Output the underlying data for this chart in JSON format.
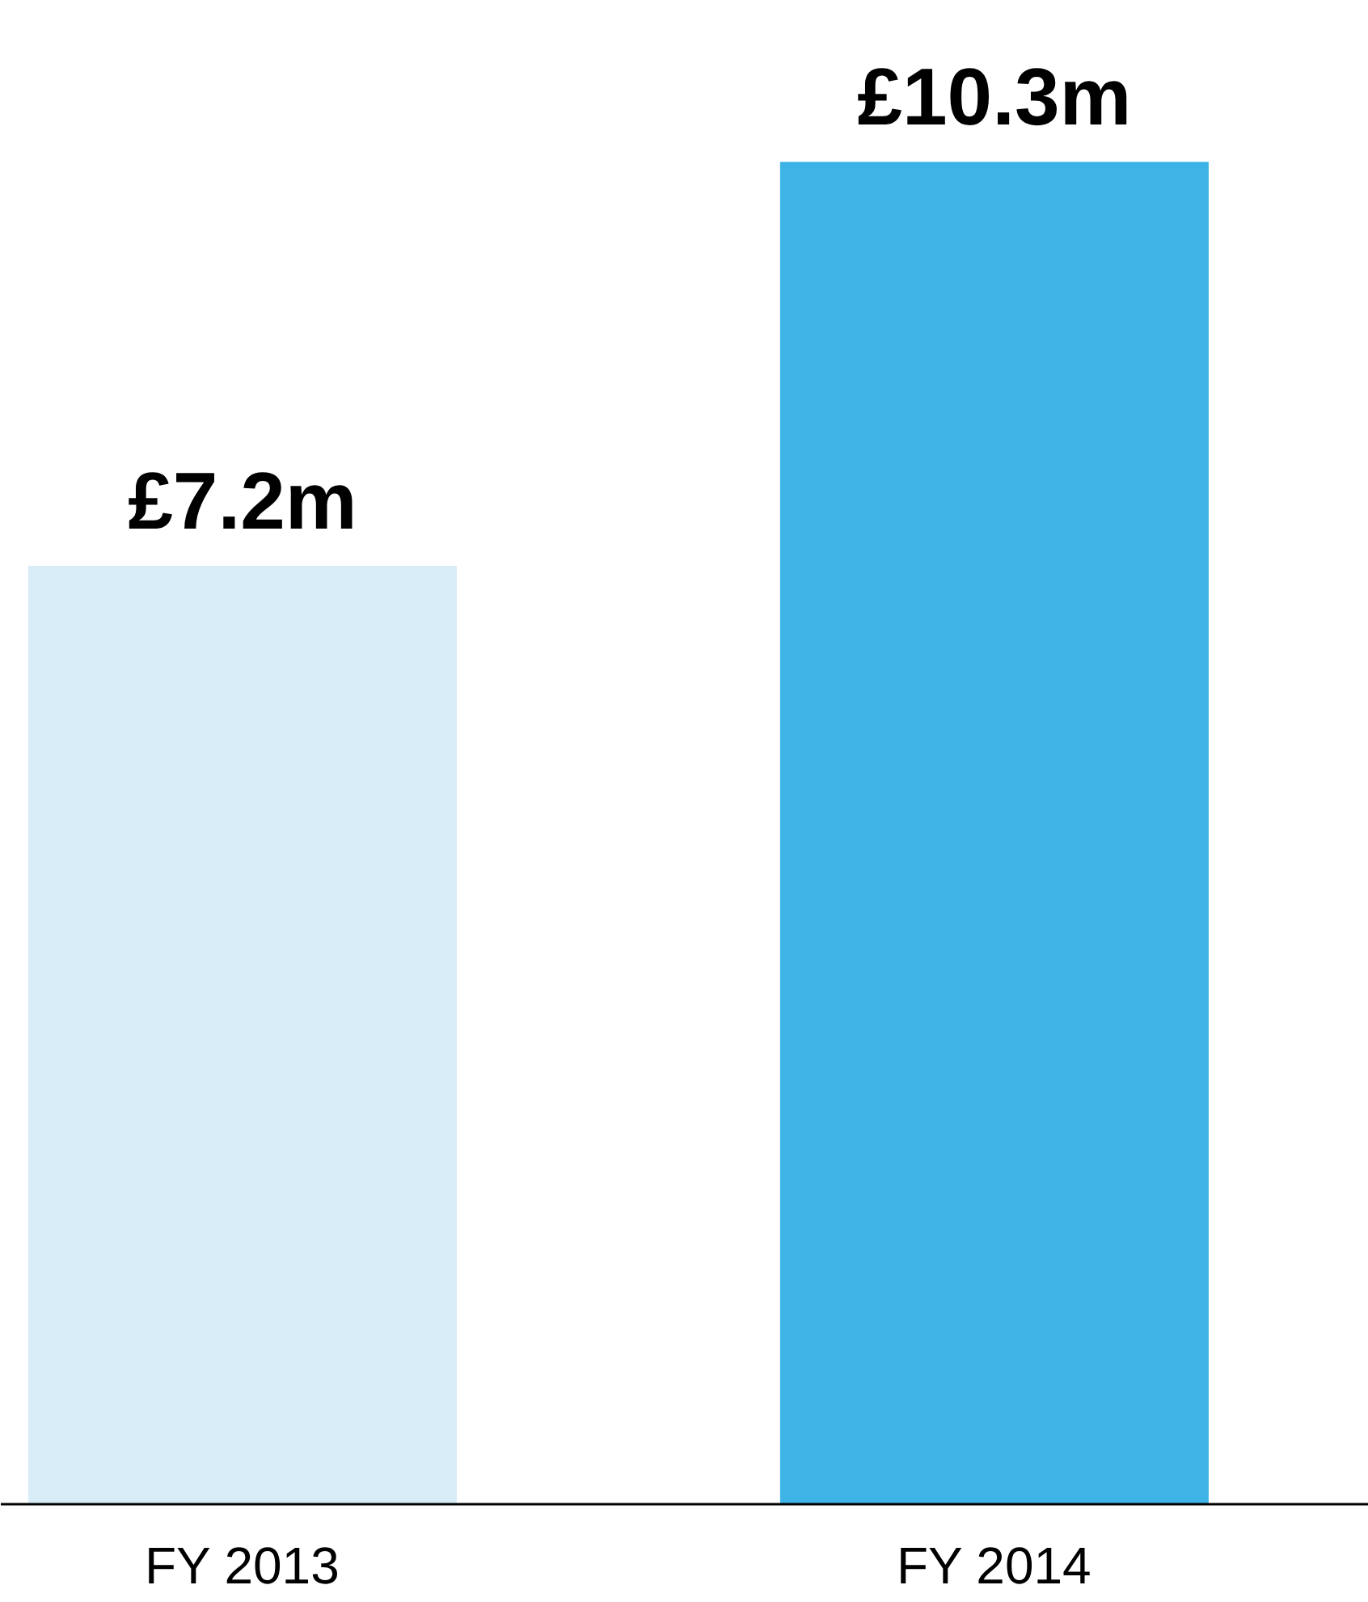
{
  "chart_data": {
    "type": "bar",
    "categories": [
      "FY 2013",
      "FY 2014"
    ],
    "values": [
      7.2,
      10.3
    ],
    "colors": [
      "#d9edf9",
      "#3db3e6"
    ],
    "value_labels": [
      "£7.2m",
      "£10.3m"
    ],
    "tick_labels": "x"
  }
}
